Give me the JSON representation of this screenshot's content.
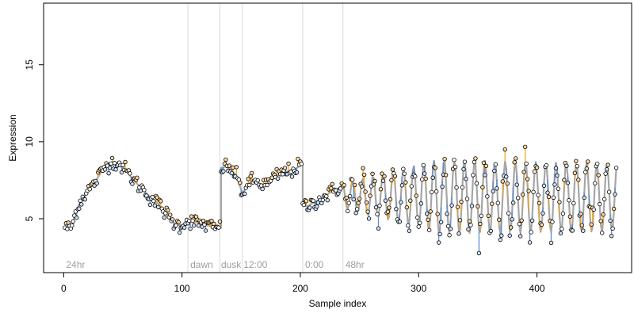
{
  "chart_data": {
    "type": "scatter",
    "title": "",
    "xlabel": "Sample index",
    "ylabel": "Expression",
    "xlim": [
      -17,
      480
    ],
    "ylim": [
      1.5,
      19.0
    ],
    "x_ticks": [
      0,
      100,
      200,
      300,
      400
    ],
    "y_ticks": [
      5,
      10,
      15
    ],
    "grid": false,
    "legend": "none",
    "colors": {
      "fitted_line": "#a6a6a6",
      "residual_positive": "#f5a623",
      "residual_negative": "#5b8fd6",
      "point_fill": "#ffffff",
      "point_stroke": "#000000",
      "phase_line": "#d9d9d9",
      "phase_label": "#9e9e9e"
    },
    "phase_boundaries": [
      105,
      132,
      151,
      202,
      236
    ],
    "phase_labels": [
      {
        "x": 2,
        "text": "24hr"
      },
      {
        "x": 107,
        "text": "dawn"
      },
      {
        "x": 133,
        "text": "dusk"
      },
      {
        "x": 152,
        "text": "12:00"
      },
      {
        "x": 204,
        "text": "0:00"
      },
      {
        "x": 238,
        "text": "48hr"
      }
    ],
    "anchors": [
      [
        1,
        4.5
      ],
      [
        4,
        4.4
      ],
      [
        7,
        4.5
      ],
      [
        10,
        5.4
      ],
      [
        14,
        6.1
      ],
      [
        18,
        6.6
      ],
      [
        21,
        6.9
      ],
      [
        25,
        7.2
      ],
      [
        29,
        7.7
      ],
      [
        33,
        8.2
      ],
      [
        38,
        8.6
      ],
      [
        43,
        8.7
      ],
      [
        48,
        8.5
      ],
      [
        53,
        8.1
      ],
      [
        58,
        7.6
      ],
      [
        63,
        7.2
      ],
      [
        68,
        6.8
      ],
      [
        73,
        6.4
      ],
      [
        78,
        6.1
      ],
      [
        83,
        5.7
      ],
      [
        88,
        5.2
      ],
      [
        92,
        4.8
      ],
      [
        96,
        4.6
      ],
      [
        100,
        4.6
      ],
      [
        105,
        4.9
      ],
      [
        110,
        4.8
      ],
      [
        115,
        4.7
      ],
      [
        120,
        4.6
      ],
      [
        125,
        4.5
      ],
      [
        128,
        4.4
      ],
      [
        132,
        4.4
      ],
      [
        133,
        8.3
      ],
      [
        137,
        8.4
      ],
      [
        141,
        8.2
      ],
      [
        145,
        7.9
      ],
      [
        148,
        7.4
      ],
      [
        151,
        6.6
      ],
      [
        155,
        7.2
      ],
      [
        160,
        7.5
      ],
      [
        165,
        7.3
      ],
      [
        170,
        7.2
      ],
      [
        175,
        7.4
      ],
      [
        180,
        7.8
      ],
      [
        185,
        8.0
      ],
      [
        190,
        8.1
      ],
      [
        195,
        8.2
      ],
      [
        199,
        8.4
      ],
      [
        201,
        8.5
      ],
      [
        202,
        5.9
      ],
      [
        206,
        5.8
      ],
      [
        210,
        6.0
      ],
      [
        215,
        6.2
      ],
      [
        220,
        6.4
      ],
      [
        225,
        6.7
      ],
      [
        230,
        6.9
      ],
      [
        235,
        7.1
      ]
    ],
    "oscillation": {
      "x_start": 236,
      "x_end": 467,
      "baseline_start": 6.5,
      "baseline_end": 6.35,
      "amplitude_start": 0.8,
      "amplitude_mid": 2.4,
      "amplitude_end": 2.2,
      "period": 8.6,
      "phase_x": 242
    },
    "residual_scale": 0.75,
    "n_samples": 467
  }
}
